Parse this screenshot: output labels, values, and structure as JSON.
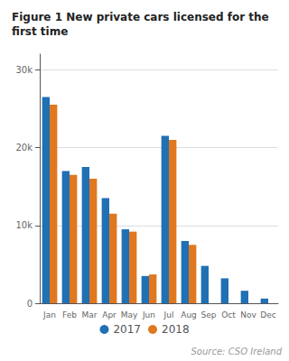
{
  "chart_data": {
    "type": "bar",
    "title": "Figure 1 New private cars licensed for the\nfirst time",
    "categories": [
      "Jan",
      "Feb",
      "Mar",
      "Apr",
      "May",
      "Jun",
      "Jul",
      "Aug",
      "Sep",
      "Oct",
      "Nov",
      "Dec"
    ],
    "series": [
      {
        "name": "2017",
        "color": "#2070b4",
        "values": [
          26500,
          17000,
          17500,
          13500,
          9500,
          3500,
          21500,
          8000,
          4800,
          3200,
          1600,
          600
        ]
      },
      {
        "name": "2018",
        "color": "#e07820",
        "values": [
          25500,
          16500,
          16000,
          11500,
          9200,
          3700,
          21000,
          7500,
          0,
          0,
          0,
          0
        ]
      }
    ],
    "ylim": [
      0,
      32000
    ],
    "yticks": [
      0,
      {
        "value": 10000,
        "label": "10k"
      },
      {
        "value": 20000,
        "label": "20k"
      },
      {
        "value": 30000,
        "label": "30k"
      }
    ],
    "grid": true,
    "legend": "bottom",
    "annotation": "Source: CSO Ireland"
  }
}
